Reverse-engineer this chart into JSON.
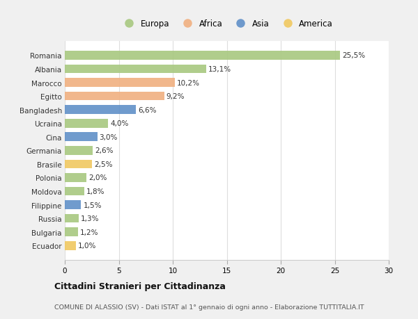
{
  "countries": [
    "Romania",
    "Albania",
    "Marocco",
    "Egitto",
    "Bangladesh",
    "Ucraina",
    "Cina",
    "Germania",
    "Brasile",
    "Polonia",
    "Moldova",
    "Filippine",
    "Russia",
    "Bulgaria",
    "Ecuador"
  ],
  "values": [
    25.5,
    13.1,
    10.2,
    9.2,
    6.6,
    4.0,
    3.0,
    2.6,
    2.5,
    2.0,
    1.8,
    1.5,
    1.3,
    1.2,
    1.0
  ],
  "labels": [
    "25,5%",
    "13,1%",
    "10,2%",
    "9,2%",
    "6,6%",
    "4,0%",
    "3,0%",
    "2,6%",
    "2,5%",
    "2,0%",
    "1,8%",
    "1,5%",
    "1,3%",
    "1,2%",
    "1,0%"
  ],
  "continents": [
    "Europa",
    "Europa",
    "Africa",
    "Africa",
    "Asia",
    "Europa",
    "Asia",
    "Europa",
    "America",
    "Europa",
    "Europa",
    "Asia",
    "Europa",
    "Europa",
    "America"
  ],
  "colors": {
    "Europa": "#a8c880",
    "Africa": "#f0b080",
    "Asia": "#6090c8",
    "America": "#f0c860"
  },
  "xlim": [
    0,
    30
  ],
  "xticks": [
    0,
    5,
    10,
    15,
    20,
    25,
    30
  ],
  "title": "Cittadini Stranieri per Cittadinanza",
  "subtitle": "COMUNE DI ALASSIO (SV) - Dati ISTAT al 1° gennaio di ogni anno - Elaborazione TUTTITALIA.IT",
  "background_color": "#f0f0f0",
  "plot_background": "#ffffff"
}
